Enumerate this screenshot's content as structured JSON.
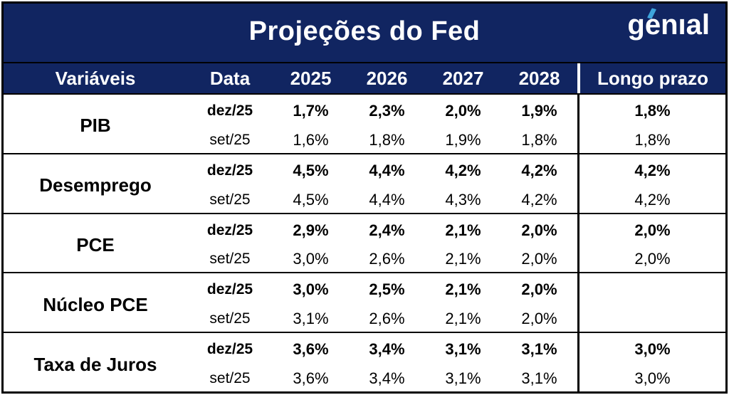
{
  "colors": {
    "navy": "#112561",
    "logo_accent_blue": "#3EA4DB",
    "border_black": "#000000",
    "background_white": "#FFFFFF"
  },
  "logo": {
    "text": "genıal"
  },
  "chart_data": {
    "type": "table",
    "title": "Projeções do Fed",
    "columns": [
      "Variáveis",
      "Data",
      "2025",
      "2026",
      "2027",
      "2028",
      "Longo prazo"
    ],
    "rows": [
      [
        "PIB",
        "dez/25",
        "1,7%",
        "2,3%",
        "2,0%",
        "1,9%",
        "1,8%"
      ],
      [
        "PIB",
        "set/25",
        "1,6%",
        "1,8%",
        "1,9%",
        "1,8%",
        "1,8%"
      ],
      [
        "Desemprego",
        "dez/25",
        "4,5%",
        "4,4%",
        "4,2%",
        "4,2%",
        "4,2%"
      ],
      [
        "Desemprego",
        "set/25",
        "4,5%",
        "4,4%",
        "4,3%",
        "4,2%",
        "4,2%"
      ],
      [
        "PCE",
        "dez/25",
        "2,9%",
        "2,4%",
        "2,1%",
        "2,0%",
        "2,0%"
      ],
      [
        "PCE",
        "set/25",
        "3,0%",
        "2,6%",
        "2,1%",
        "2,0%",
        "2,0%"
      ],
      [
        "Núcleo PCE",
        "dez/25",
        "3,0%",
        "2,5%",
        "2,1%",
        "2,0%",
        ""
      ],
      [
        "Núcleo PCE",
        "set/25",
        "3,1%",
        "2,6%",
        "2,1%",
        "2,0%",
        ""
      ],
      [
        "Taxa de Juros",
        "dez/25",
        "3,6%",
        "3,4%",
        "3,1%",
        "3,1%",
        "3,0%"
      ],
      [
        "Taxa de Juros",
        "set/25",
        "3,6%",
        "3,4%",
        "3,1%",
        "3,1%",
        "3,0%"
      ]
    ],
    "notes": "dez/25 rows shown in bold; set/25 rows regular weight; Núcleo PCE has no Longo prazo value"
  }
}
